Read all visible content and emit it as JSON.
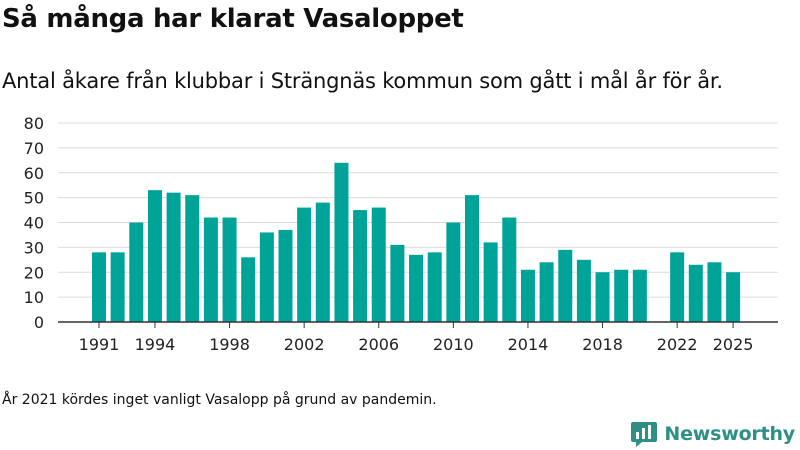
{
  "title": "Så många har klarat Vasaloppet",
  "subtitle": "Antal åkare från klubbar i Strängnäs kommun som gått i mål år för år.",
  "footnote": "År 2021 kördes inget vanligt Vasalopp på grund av pandemin.",
  "brand": {
    "name": "Newsworthy",
    "logo_icon": "chart-bubble-icon",
    "color": "#2d8f86"
  },
  "chart_data": {
    "type": "bar",
    "title": "Så många har klarat Vasaloppet",
    "xlabel": "",
    "ylabel": "",
    "ylim": [
      0,
      80
    ],
    "yticks": [
      0,
      10,
      20,
      30,
      40,
      50,
      60,
      70,
      80
    ],
    "bar_color": "#00a398",
    "grid": true,
    "categories": [
      1991,
      1992,
      1993,
      1994,
      1995,
      1996,
      1997,
      1998,
      1999,
      2000,
      2001,
      2002,
      2003,
      2004,
      2005,
      2006,
      2007,
      2008,
      2009,
      2010,
      2011,
      2012,
      2013,
      2014,
      2015,
      2016,
      2017,
      2018,
      2019,
      2020,
      2021,
      2022,
      2023,
      2024,
      2025
    ],
    "values": [
      28,
      28,
      40,
      53,
      52,
      51,
      42,
      42,
      26,
      36,
      37,
      46,
      48,
      64,
      45,
      46,
      31,
      27,
      28,
      40,
      51,
      32,
      42,
      21,
      24,
      29,
      25,
      20,
      21,
      21,
      null,
      28,
      23,
      24,
      20
    ],
    "xtick_labels": [
      "1991",
      "1994",
      "1998",
      "2002",
      "2006",
      "2010",
      "2014",
      "2018",
      "2022",
      "2025"
    ]
  }
}
